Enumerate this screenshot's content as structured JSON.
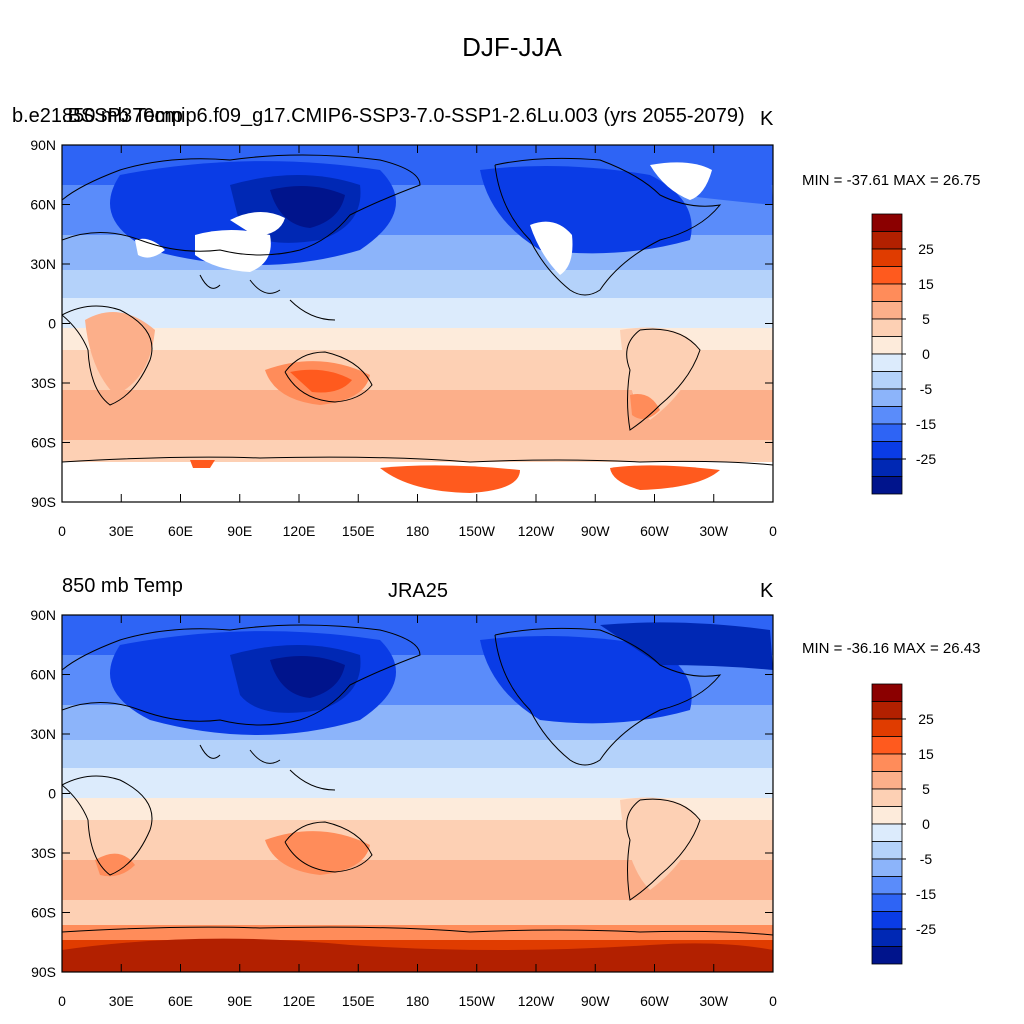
{
  "title": "DJF-JJA",
  "colorbar": {
    "labels": [
      "25",
      "15",
      "5",
      "0",
      "-5",
      "-15",
      "-25"
    ],
    "colors": [
      "#8b0000",
      "#b22000",
      "#e03c00",
      "#ff5a1e",
      "#ff8c5a",
      "#fcaf8a",
      "#fdd0b4",
      "#fdebdb",
      "#dcebfc",
      "#b4d2fa",
      "#8cb4fa",
      "#5a8cfa",
      "#2e64f5",
      "#0a3ce6",
      "#0028b4",
      "#00148c"
    ]
  },
  "panels": [
    {
      "id": "model",
      "left_title_overlap": "850 mb Temp",
      "center_title": "b.e21.BSSP370cmip6.f09_g17.CMIP6-SSP3-7.0-SSP1-2.6Lu.003 (yrs 2055-2079)",
      "right_title": "K",
      "min_max": "MIN = -37.61 MAX =  26.75",
      "lat_labels": [
        "90N",
        "60N",
        "30N",
        "0",
        "30S",
        "60S",
        "90S"
      ],
      "lon_labels": [
        "0",
        "30E",
        "60E",
        "90E",
        "120E",
        "150E",
        "180",
        "150W",
        "120W",
        "90W",
        "60W",
        "30W",
        "0"
      ]
    },
    {
      "id": "obs",
      "left_title": "850 mb Temp",
      "center_title": "JRA25",
      "right_title": "K",
      "min_max": "MIN = -36.16 MAX =  26.43",
      "lat_labels": [
        "90N",
        "60N",
        "30N",
        "0",
        "30S",
        "60S",
        "90S"
      ],
      "lon_labels": [
        "0",
        "30E",
        "60E",
        "90E",
        "120E",
        "150E",
        "180",
        "150W",
        "120W",
        "90W",
        "60W",
        "30W",
        "0"
      ]
    }
  ]
}
